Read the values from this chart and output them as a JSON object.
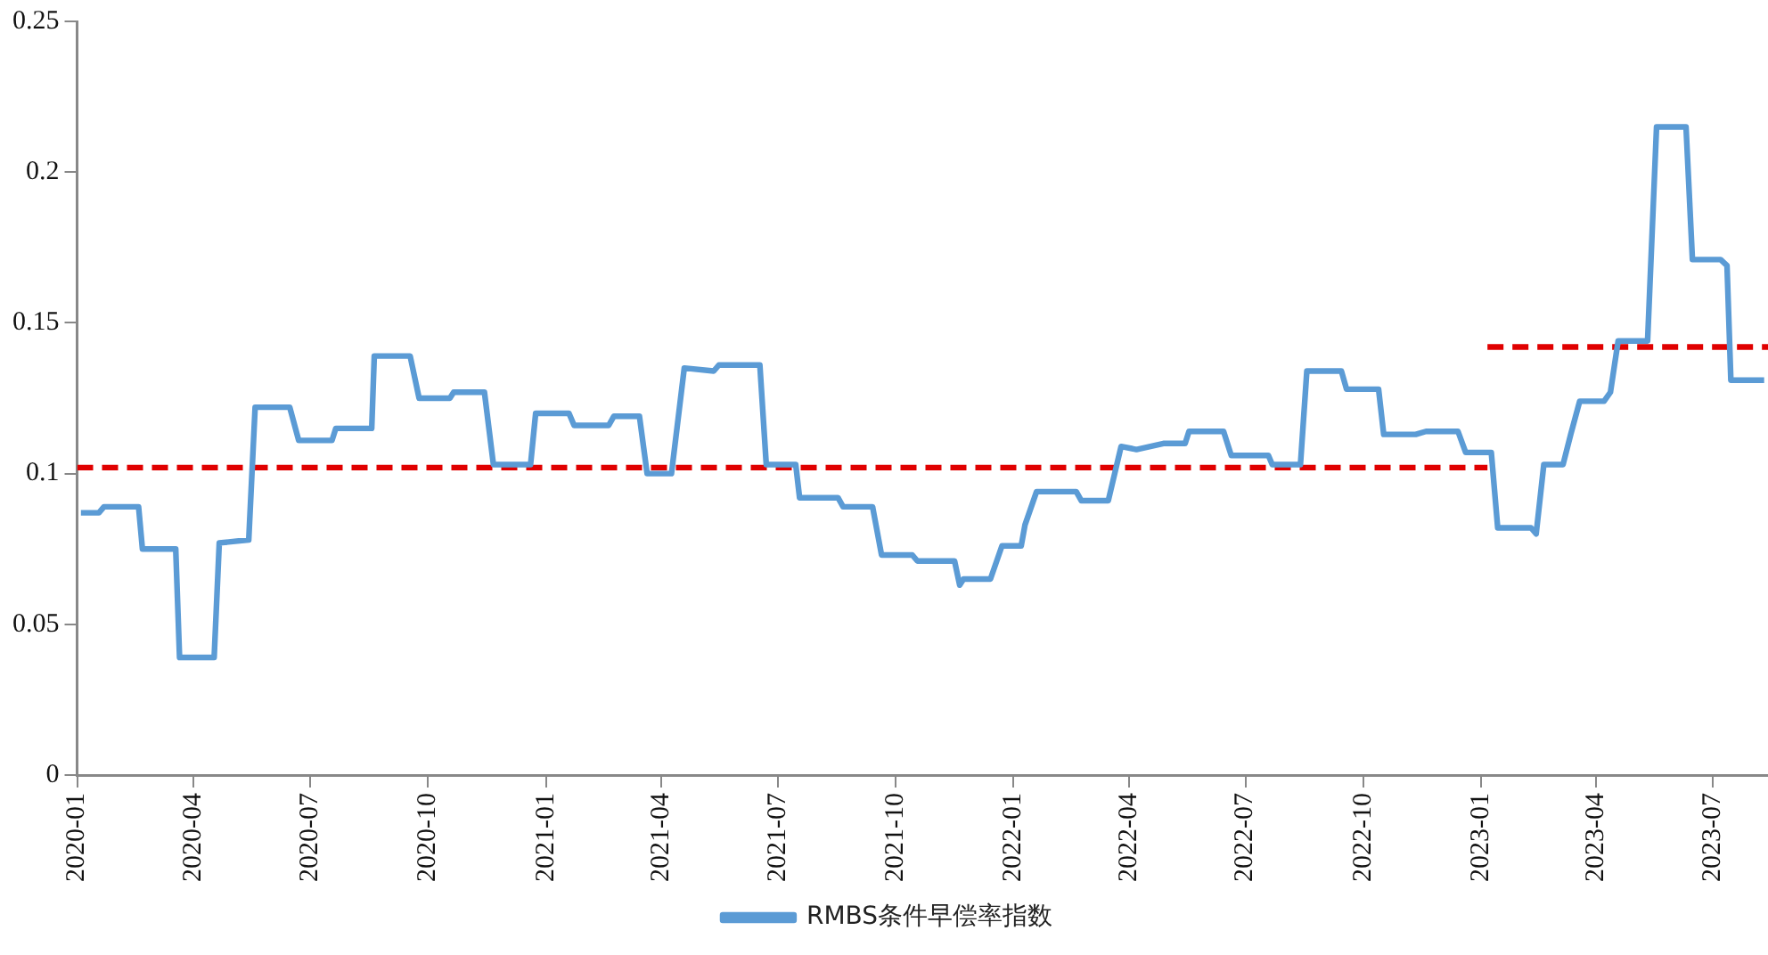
{
  "chart_data": {
    "type": "line",
    "legend": "bottom",
    "marker": "none",
    "xlim": [
      "2020-01-01",
      "2023-08-13"
    ],
    "xticks": [
      "2020-01",
      "2020-04",
      "2020-07",
      "2020-10",
      "2021-01",
      "2021-04",
      "2021-07",
      "2021-10",
      "2022-01",
      "2022-04",
      "2022-07",
      "2022-10",
      "2023-01",
      "2023-04",
      "2023-07"
    ],
    "ylim": [
      0,
      0.25
    ],
    "yticks": [
      0,
      0.05,
      0.1,
      0.15,
      0.2,
      0.25
    ],
    "series": [
      {
        "name": "RMBS条件早偿率指数",
        "color": "#5b9bd5",
        "line_style": "solid",
        "x": [
          "2020-01-04",
          "2020-01-18",
          "2020-01-22",
          "2020-02-18",
          "2020-02-21",
          "2020-03-18",
          "2020-03-21",
          "2020-04-17",
          "2020-04-21",
          "2020-05-14",
          "2020-05-19",
          "2020-06-15",
          "2020-06-22",
          "2020-07-18",
          "2020-07-21",
          "2020-08-18",
          "2020-08-20",
          "2020-09-17",
          "2020-09-24",
          "2020-10-18",
          "2020-10-21",
          "2020-11-14",
          "2020-11-21",
          "2020-12-20",
          "2020-12-24",
          "2021-01-19",
          "2021-01-23",
          "2021-02-19",
          "2021-02-23",
          "2021-03-15",
          "2021-03-21",
          "2021-04-09",
          "2021-04-19",
          "2021-05-12",
          "2021-05-16",
          "2021-06-17",
          "2021-06-22",
          "2021-07-15",
          "2021-07-18",
          "2021-08-17",
          "2021-08-21",
          "2021-09-13",
          "2021-09-20",
          "2021-10-14",
          "2021-10-18",
          "2021-11-16",
          "2021-11-20",
          "2021-11-23",
          "2021-12-14",
          "2021-12-23",
          "2022-01-07",
          "2022-01-10",
          "2022-01-19",
          "2022-02-19",
          "2022-02-23",
          "2022-03-16",
          "2022-03-26",
          "2022-04-07",
          "2022-04-28",
          "2022-05-15",
          "2022-05-18",
          "2022-06-14",
          "2022-06-20",
          "2022-07-19",
          "2022-07-22",
          "2022-08-13",
          "2022-08-18",
          "2022-09-14",
          "2022-09-18",
          "2022-10-13",
          "2022-10-17",
          "2022-11-11",
          "2022-11-19",
          "2022-12-14",
          "2022-12-20",
          "2023-01-09",
          "2023-01-14",
          "2023-02-09",
          "2023-02-13",
          "2023-02-19",
          "2023-03-06",
          "2023-03-12",
          "2023-03-19",
          "2023-04-07",
          "2023-04-12",
          "2023-04-18",
          "2023-05-11",
          "2023-05-18",
          "2023-06-10",
          "2023-06-15",
          "2023-07-07",
          "2023-07-12",
          "2023-07-15",
          "2023-08-10"
        ],
        "values": [
          0.087,
          0.087,
          0.089,
          0.089,
          0.075,
          0.075,
          0.039,
          0.039,
          0.077,
          0.078,
          0.122,
          0.122,
          0.111,
          0.111,
          0.115,
          0.115,
          0.139,
          0.139,
          0.125,
          0.125,
          0.127,
          0.127,
          0.103,
          0.103,
          0.12,
          0.12,
          0.116,
          0.116,
          0.119,
          0.119,
          0.1,
          0.1,
          0.135,
          0.134,
          0.136,
          0.136,
          0.103,
          0.103,
          0.092,
          0.092,
          0.089,
          0.089,
          0.073,
          0.073,
          0.071,
          0.071,
          0.063,
          0.065,
          0.065,
          0.076,
          0.076,
          0.083,
          0.094,
          0.094,
          0.091,
          0.091,
          0.109,
          0.108,
          0.11,
          0.11,
          0.114,
          0.114,
          0.106,
          0.106,
          0.103,
          0.103,
          0.134,
          0.134,
          0.128,
          0.128,
          0.113,
          0.113,
          0.114,
          0.114,
          0.107,
          0.107,
          0.082,
          0.082,
          0.08,
          0.103,
          0.103,
          0.113,
          0.124,
          0.124,
          0.127,
          0.144,
          0.144,
          0.215,
          0.215,
          0.171,
          0.171,
          0.169,
          0.131,
          0.131
        ]
      },
      {
        "color": "#e00000",
        "line_style": "dashed",
        "x": [
          "2020-01-01",
          "2023-01-06"
        ],
        "values": [
          0.102,
          0.102
        ]
      },
      {
        "color": "#e00000",
        "line_style": "dashed",
        "x": [
          "2023-01-06",
          "2023-08-13"
        ],
        "values": [
          0.142,
          0.142
        ]
      }
    ]
  }
}
